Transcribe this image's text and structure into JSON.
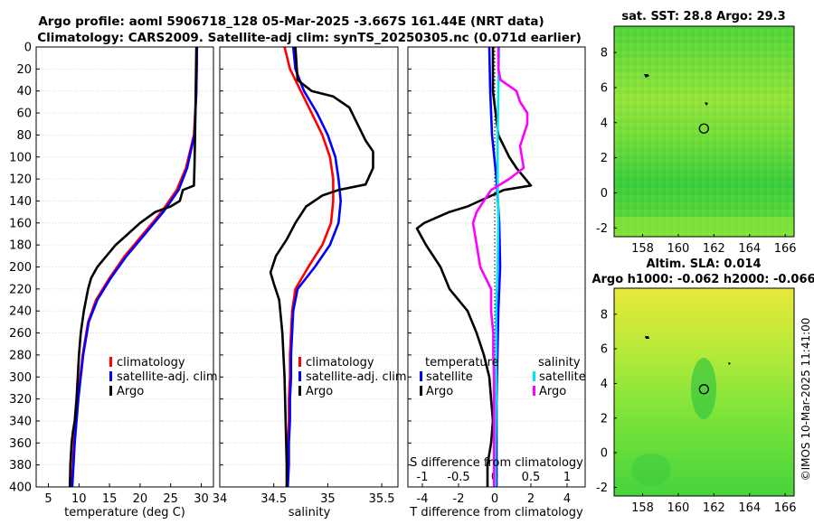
{
  "title": {
    "line1": "Argo profile: aoml 5906718_128 05-Mar-2025 -3.667S 161.44E (NRT data)",
    "line2": "Climatology: CARS2009. Satellite-adj clim: synTS_20250305.nc (0.071d earlier)"
  },
  "footer_stamp": "©IMOS 10-Mar-2025 11:41:00",
  "colors": {
    "climatology": "#ff0000",
    "satellite_adj": "#0000ff",
    "argo": "#000000",
    "sat_salinity": "#00e5ee",
    "argo_salinity": "#ff00ff"
  },
  "chart_data": [
    {
      "id": "temperature",
      "type": "line",
      "xlabel": "temperature (deg C)",
      "xlim": [
        3,
        32
      ],
      "xticks": [
        5,
        10,
        15,
        20,
        25,
        30
      ],
      "ylim": [
        400,
        0
      ],
      "yticks": [
        0,
        20,
        40,
        60,
        80,
        100,
        120,
        140,
        160,
        180,
        200,
        220,
        240,
        260,
        280,
        300,
        320,
        340,
        360,
        380,
        400
      ],
      "grid": true,
      "legend": {
        "position": "lower-right",
        "entries": [
          "climatology",
          "satellite-adj. clim",
          "Argo"
        ]
      },
      "series": [
        {
          "name": "climatology",
          "color": "#ff0000",
          "depth": [
            0,
            40,
            80,
            110,
            130,
            150,
            170,
            190,
            210,
            230,
            250,
            280,
            320,
            360,
            400
          ],
          "values": [
            29.3,
            29.2,
            28.8,
            27.5,
            26,
            23.5,
            20.5,
            17.5,
            15,
            12.8,
            11.5,
            10.6,
            9.8,
            9.2,
            8.8
          ]
        },
        {
          "name": "satellite-adj. clim",
          "color": "#0000ff",
          "depth": [
            0,
            40,
            80,
            110,
            130,
            150,
            170,
            190,
            210,
            230,
            250,
            280,
            320,
            360,
            400
          ],
          "values": [
            29.3,
            29.2,
            28.9,
            27.7,
            26.3,
            23.8,
            20.8,
            17.8,
            15.2,
            13,
            11.6,
            10.7,
            9.9,
            9.3,
            8.9
          ]
        },
        {
          "name": "Argo",
          "color": "#000000",
          "depth": [
            0,
            40,
            80,
            110,
            126,
            130,
            140,
            145,
            150,
            160,
            170,
            180,
            190,
            200,
            210,
            220,
            240,
            260,
            280,
            300,
            320,
            340,
            350,
            360,
            380,
            400
          ],
          "values": [
            29.2,
            29.1,
            29,
            28.9,
            28.8,
            27,
            26.5,
            25,
            22.5,
            20,
            18,
            16,
            14.5,
            13,
            12,
            11.5,
            10.8,
            10.3,
            10,
            9.8,
            9.6,
            9.3,
            9,
            8.8,
            8.6,
            8.5
          ]
        }
      ]
    },
    {
      "id": "salinity",
      "type": "line",
      "xlabel": "salinity",
      "xlim": [
        34,
        35.65
      ],
      "xticks": [
        34,
        34.5,
        35,
        35.5
      ],
      "ylim": [
        400,
        0
      ],
      "grid": true,
      "legend": {
        "position": "lower-right",
        "entries": [
          "climatology",
          "satellite-adj. clim",
          "Argo"
        ]
      },
      "series": [
        {
          "name": "climatology",
          "color": "#ff0000",
          "depth": [
            0,
            20,
            40,
            60,
            80,
            100,
            120,
            140,
            160,
            180,
            200,
            220,
            240,
            260,
            280,
            300,
            320,
            340,
            360,
            380,
            400
          ],
          "values": [
            34.6,
            34.65,
            34.75,
            34.85,
            34.95,
            35.02,
            35.05,
            35.05,
            35.03,
            34.95,
            34.82,
            34.7,
            34.67,
            34.66,
            34.65,
            34.65,
            34.64,
            34.64,
            34.63,
            34.63,
            34.62
          ]
        },
        {
          "name": "satellite-adj. clim",
          "color": "#0000ff",
          "depth": [
            0,
            20,
            40,
            60,
            80,
            100,
            120,
            140,
            160,
            180,
            200,
            220,
            240,
            260,
            280,
            300,
            320,
            340,
            360,
            380,
            400
          ],
          "values": [
            34.68,
            34.7,
            34.78,
            34.9,
            35,
            35.07,
            35.1,
            35.12,
            35.1,
            35.02,
            34.88,
            34.72,
            34.68,
            34.67,
            34.66,
            34.66,
            34.65,
            34.65,
            34.64,
            34.64,
            34.63
          ]
        },
        {
          "name": "Argo",
          "color": "#000000",
          "depth": [
            0,
            30,
            40,
            45,
            55,
            65,
            75,
            85,
            95,
            110,
            125,
            130,
            135,
            145,
            160,
            175,
            190,
            205,
            215,
            230,
            260,
            300,
            340,
            380,
            400
          ],
          "values": [
            34.7,
            34.72,
            34.85,
            35.05,
            35.2,
            35.25,
            35.3,
            35.35,
            35.42,
            35.42,
            35.35,
            35.1,
            34.95,
            34.8,
            34.7,
            34.62,
            34.52,
            34.47,
            34.5,
            34.55,
            34.58,
            34.6,
            34.61,
            34.62,
            34.62
          ]
        }
      ]
    },
    {
      "id": "differences",
      "type": "line",
      "xlabel": "T difference from climatology",
      "xlim": [
        -4.8,
        5
      ],
      "xticks": [
        -4,
        -2,
        0,
        2,
        4
      ],
      "top_axis": {
        "label": "S difference from climatology",
        "xlim": [
          -1.2,
          1.25
        ],
        "ticks": [
          "-1",
          "-0.5",
          "0",
          "0.5",
          "1"
        ],
        "tick_values": [
          -1,
          -0.5,
          0,
          0.5,
          1
        ]
      },
      "ylim": [
        400,
        0
      ],
      "grid": true,
      "legend": {
        "position": "lower-middle",
        "groups": [
          {
            "title": "temperature",
            "entries": [
              "satellite",
              "Argo"
            ]
          },
          {
            "title": "salinity",
            "entries": [
              "satellite",
              "Argo"
            ]
          }
        ]
      },
      "series": [
        {
          "name": "temperature satellite",
          "color": "#0000ff",
          "axis": "T",
          "depth": [
            0,
            40,
            80,
            120,
            160,
            200,
            240,
            280,
            320,
            360,
            400
          ],
          "values": [
            -0.3,
            -0.25,
            -0.15,
            0.1,
            0.25,
            0.3,
            0.2,
            0.15,
            0.1,
            0.1,
            0.1
          ]
        },
        {
          "name": "temperature Argo",
          "color": "#000000",
          "axis": "T",
          "depth": [
            0,
            40,
            80,
            100,
            110,
            126,
            130,
            145,
            150,
            160,
            165,
            180,
            200,
            220,
            240,
            260,
            280,
            300,
            320,
            340,
            360,
            380,
            400
          ],
          "values": [
            -0.1,
            -0.1,
            0.2,
            0.8,
            1.2,
            2,
            0.5,
            -1.5,
            -2.5,
            -3.9,
            -4.3,
            -3.8,
            -3,
            -2.5,
            -1.5,
            -1,
            -0.6,
            -0.3,
            -0.2,
            -0.1,
            -0.2,
            -0.4,
            -0.4
          ]
        },
        {
          "name": "salinity satellite",
          "color": "#00e5ee",
          "axis": "S",
          "depth": [
            0,
            40,
            80,
            120,
            160,
            200,
            240,
            280,
            320,
            360,
            400
          ],
          "values": [
            0.06,
            0.05,
            0.04,
            0.04,
            0.05,
            0.04,
            0.02,
            0.02,
            0.02,
            0.01,
            0.01
          ]
        },
        {
          "name": "salinity Argo",
          "color": "#ff00ff",
          "axis": "S",
          "depth": [
            0,
            20,
            30,
            40,
            50,
            60,
            70,
            80,
            90,
            110,
            120,
            130,
            140,
            150,
            160,
            180,
            200,
            220,
            240,
            260,
            280,
            300,
            320,
            360,
            400
          ],
          "values": [
            0.05,
            0.05,
            0.08,
            0.3,
            0.35,
            0.45,
            0.45,
            0.4,
            0.35,
            0.4,
            0.2,
            -0.05,
            -0.15,
            -0.25,
            -0.3,
            -0.25,
            -0.2,
            -0.05,
            -0.05,
            -0.02,
            -0.02,
            -0.01,
            -0.01,
            -0.01,
            -0.01
          ]
        }
      ]
    },
    {
      "id": "sst_map",
      "type": "heatmap",
      "title": "sat. SST: 28.8 Argo: 29.3",
      "xticks": [
        158,
        160,
        162,
        164,
        166
      ],
      "xlim": [
        156.4,
        166.5
      ],
      "yticks": [
        -2,
        0,
        2,
        4,
        6,
        8
      ],
      "ylim": [
        -2.5,
        9.5
      ],
      "argo_position": [
        161.44,
        3.667
      ]
    },
    {
      "id": "sla_map",
      "type": "heatmap",
      "title": "Altim. SLA: 0.014",
      "subtitle": "Argo h1000: -0.062 h2000: -0.066",
      "xticks": [
        158,
        160,
        162,
        164,
        166
      ],
      "xlim": [
        156.4,
        166.5
      ],
      "yticks": [
        -2,
        0,
        2,
        4,
        6,
        8
      ],
      "ylim": [
        -2.5,
        9.5
      ],
      "argo_position": [
        161.44,
        3.667
      ]
    }
  ]
}
